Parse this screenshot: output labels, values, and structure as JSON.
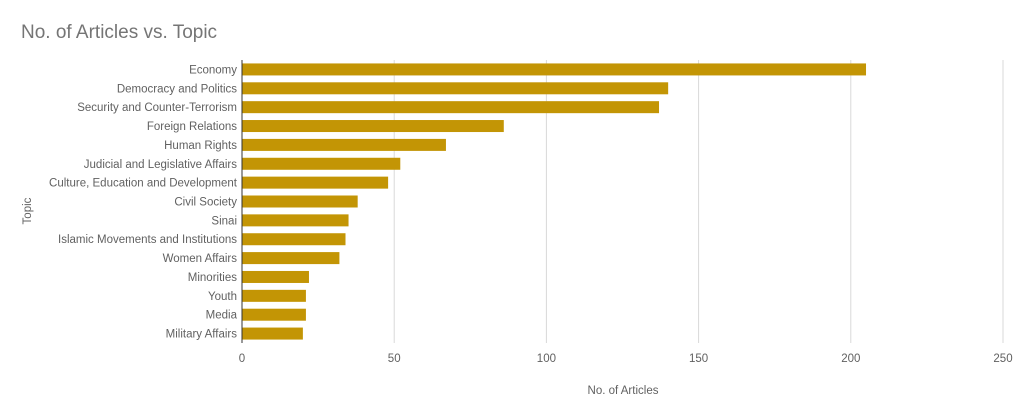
{
  "chart_data": {
    "type": "bar",
    "orientation": "horizontal",
    "title": "No. of Articles vs. Topic",
    "xlabel": "No. of Articles",
    "ylabel": "Topic",
    "categories": [
      "Economy",
      "Democracy and Politics",
      "Security and Counter-Terrorism",
      "Foreign Relations",
      "Human Rights",
      "Judicial and Legislative Affairs",
      "Culture, Education and Development",
      "Civil Society",
      "Sinai",
      "Islamic Movements and Institutions",
      "Women Affairs",
      "Minorities",
      "Youth",
      "Media",
      "Military Affairs"
    ],
    "values": [
      205,
      140,
      137,
      86,
      67,
      52,
      48,
      38,
      35,
      34,
      32,
      22,
      21,
      21,
      20
    ],
    "xlim": [
      0,
      250
    ],
    "xticks": [
      "0",
      "50",
      "100",
      "150",
      "200",
      "250"
    ],
    "grid": true,
    "legend": "none",
    "colors": {
      "bar": "#c39505",
      "grid": "#d9d9d9",
      "axis": "#333333",
      "text": "#616161",
      "title": "#757575"
    }
  }
}
